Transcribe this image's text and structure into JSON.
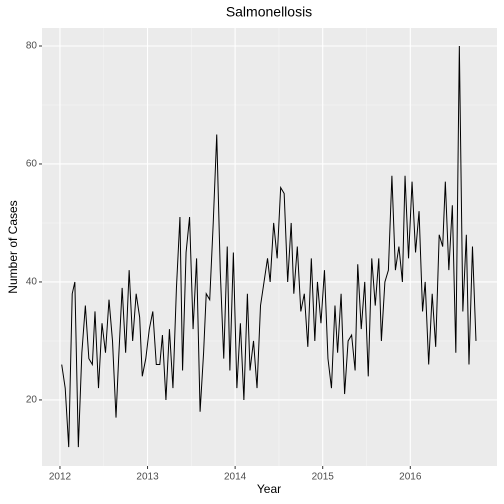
{
  "chart_data": {
    "type": "line",
    "title": "Salmonellosis",
    "x_label": "Year",
    "y_label": "Number of Cases",
    "x": [
      2012.02,
      2012.06,
      2012.1,
      2012.14,
      2012.17,
      2012.21,
      2012.25,
      2012.29,
      2012.33,
      2012.37,
      2012.4,
      2012.44,
      2012.48,
      2012.52,
      2012.56,
      2012.6,
      2012.64,
      2012.67,
      2012.71,
      2012.75,
      2012.79,
      2012.83,
      2012.87,
      2012.91,
      2012.94,
      2012.98,
      2013.02,
      2013.06,
      2013.1,
      2013.14,
      2013.17,
      2013.21,
      2013.25,
      2013.29,
      2013.33,
      2013.37,
      2013.4,
      2013.44,
      2013.48,
      2013.52,
      2013.56,
      2013.6,
      2013.64,
      2013.67,
      2013.71,
      2013.75,
      2013.79,
      2013.83,
      2013.87,
      2013.91,
      2013.94,
      2013.98,
      2014.02,
      2014.06,
      2014.1,
      2014.14,
      2014.17,
      2014.21,
      2014.25,
      2014.29,
      2014.33,
      2014.37,
      2014.4,
      2014.44,
      2014.48,
      2014.52,
      2014.56,
      2014.6,
      2014.64,
      2014.67,
      2014.71,
      2014.75,
      2014.79,
      2014.83,
      2014.87,
      2014.91,
      2014.94,
      2014.98,
      2015.02,
      2015.06,
      2015.1,
      2015.14,
      2015.17,
      2015.21,
      2015.25,
      2015.29,
      2015.33,
      2015.37,
      2015.4,
      2015.44,
      2015.48,
      2015.52,
      2015.56,
      2015.6,
      2015.64,
      2015.67,
      2015.71,
      2015.75,
      2015.79,
      2015.83,
      2015.87,
      2015.91,
      2015.94,
      2015.98,
      2016.02,
      2016.06,
      2016.1,
      2016.14,
      2016.17,
      2016.21,
      2016.25,
      2016.29,
      2016.33,
      2016.37,
      2016.4,
      2016.44,
      2016.48,
      2016.52,
      2016.56,
      2016.6,
      2016.64,
      2016.67,
      2016.71,
      2016.75
    ],
    "series": [
      {
        "color": "#000000",
        "values": [
          26,
          22,
          12,
          38,
          40,
          12,
          28,
          36,
          27,
          26,
          35,
          22,
          33,
          28,
          37,
          30,
          17,
          27,
          39,
          28,
          42,
          30,
          38,
          34,
          24,
          27,
          32,
          35,
          26,
          26,
          31,
          20,
          32,
          22,
          39,
          51,
          25,
          45,
          51,
          32,
          44,
          18,
          28,
          38,
          37,
          50,
          65,
          42,
          27,
          46,
          25,
          45,
          22,
          33,
          20,
          38,
          25,
          30,
          22,
          36,
          40,
          44,
          40,
          50,
          44,
          56,
          55,
          40,
          50,
          38,
          46,
          35,
          38,
          29,
          44,
          30,
          40,
          33,
          42,
          27,
          22,
          36,
          28,
          38,
          21,
          30,
          31,
          25,
          43,
          32,
          40,
          24,
          44,
          36,
          44,
          30,
          40,
          42,
          58,
          42,
          46,
          40,
          58,
          44,
          57,
          45,
          52,
          35,
          40,
          26,
          38,
          29,
          48,
          46,
          57,
          42,
          53,
          28,
          80,
          35,
          48,
          26,
          46,
          30
        ]
      }
    ],
    "xlim": [
      2011.795,
      2016.99
    ],
    "xticks": [
      2012,
      2013,
      2014,
      2015,
      2016
    ],
    "ylim": [
      8.8,
      83.05
    ],
    "yticks": [
      20,
      40,
      60,
      80
    ],
    "grid": true
  }
}
